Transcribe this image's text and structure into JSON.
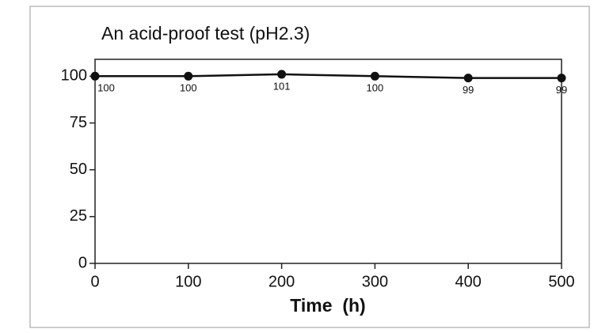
{
  "chart_data": {
    "type": "line",
    "title": "An acid-proof test (pH2.3)",
    "x_label": "Time  (h)",
    "x": [
      0,
      100,
      200,
      300,
      400,
      500
    ],
    "series": [
      {
        "name": "pH2.3",
        "color": "#111111",
        "values": [
          100,
          100,
          101,
          100,
          99,
          99
        ]
      }
    ],
    "xlim": [
      0,
      500
    ],
    "xticks": [
      0,
      100,
      200,
      300,
      400,
      500
    ],
    "ylim": [
      0,
      109
    ],
    "yticks": [
      0,
      25,
      50,
      75,
      100
    ],
    "grid": false
  }
}
